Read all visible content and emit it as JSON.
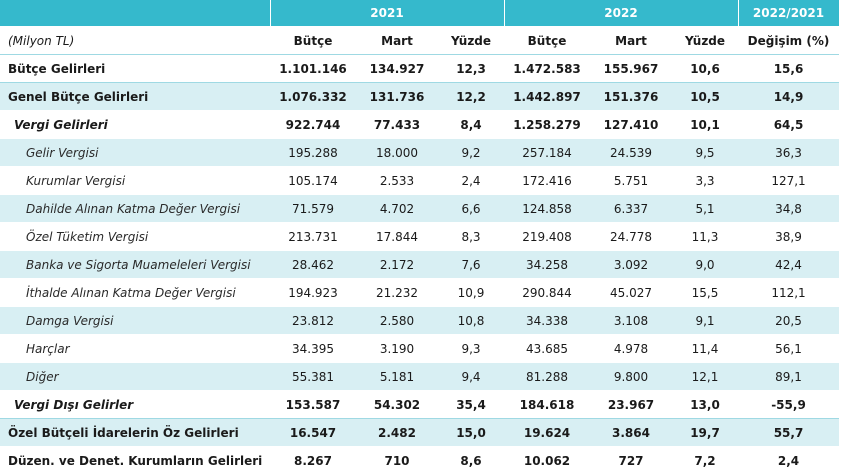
{
  "header": {
    "year1": "2021",
    "year2": "2022",
    "change": "2022/2021",
    "unit": "(Milyon TL)",
    "col_budget": "Bütçe",
    "col_march": "Mart",
    "col_pct": "Yüzde",
    "col_change": "Değişim (%)"
  },
  "rows": [
    {
      "label": "Bütçe Gelirleri",
      "b21": "1.101.146",
      "m21": "134.927",
      "p21": "12,3",
      "b22": "1.472.583",
      "m22": "155.967",
      "p22": "10,6",
      "chg": "15,6"
    },
    {
      "label": "Genel Bütçe Gelirleri",
      "b21": "1.076.332",
      "m21": "131.736",
      "p21": "12,2",
      "b22": "1.442.897",
      "m22": "151.376",
      "p22": "10,5",
      "chg": "14,9"
    },
    {
      "label": "Vergi Gelirleri",
      "b21": "922.744",
      "m21": "77.433",
      "p21": "8,4",
      "b22": "1.258.279",
      "m22": "127.410",
      "p22": "10,1",
      "chg": "64,5"
    },
    {
      "label": "Gelir Vergisi",
      "b21": "195.288",
      "m21": "18.000",
      "p21": "9,2",
      "b22": "257.184",
      "m22": "24.539",
      "p22": "9,5",
      "chg": "36,3"
    },
    {
      "label": "Kurumlar Vergisi",
      "b21": "105.174",
      "m21": "2.533",
      "p21": "2,4",
      "b22": "172.416",
      "m22": "5.751",
      "p22": "3,3",
      "chg": "127,1"
    },
    {
      "label": "Dahilde Alınan Katma Değer Vergisi",
      "b21": "71.579",
      "m21": "4.702",
      "p21": "6,6",
      "b22": "124.858",
      "m22": "6.337",
      "p22": "5,1",
      "chg": "34,8"
    },
    {
      "label": "Özel Tüketim Vergisi",
      "b21": "213.731",
      "m21": "17.844",
      "p21": "8,3",
      "b22": "219.408",
      "m22": "24.778",
      "p22": "11,3",
      "chg": "38,9"
    },
    {
      "label": "Banka ve Sigorta Muameleleri Vergisi",
      "b21": "28.462",
      "m21": "2.172",
      "p21": "7,6",
      "b22": "34.258",
      "m22": "3.092",
      "p22": "9,0",
      "chg": "42,4"
    },
    {
      "label": "İthalde Alınan Katma Değer Vergisi",
      "b21": "194.923",
      "m21": "21.232",
      "p21": "10,9",
      "b22": "290.844",
      "m22": "45.027",
      "p22": "15,5",
      "chg": "112,1"
    },
    {
      "label": "Damga Vergisi",
      "b21": "23.812",
      "m21": "2.580",
      "p21": "10,8",
      "b22": "34.338",
      "m22": "3.108",
      "p22": "9,1",
      "chg": "20,5"
    },
    {
      "label": "Harçlar",
      "b21": "34.395",
      "m21": "3.190",
      "p21": "9,3",
      "b22": "43.685",
      "m22": "4.978",
      "p22": "11,4",
      "chg": "56,1"
    },
    {
      "label": "Diğer",
      "b21": "55.381",
      "m21": "5.181",
      "p21": "9,4",
      "b22": "81.288",
      "m22": "9.800",
      "p22": "12,1",
      "chg": "89,1"
    },
    {
      "label": "Vergi Dışı Gelirler",
      "b21": "153.587",
      "m21": "54.302",
      "p21": "35,4",
      "b22": "184.618",
      "m22": "23.967",
      "p22": "13,0",
      "chg": "-55,9"
    },
    {
      "label": "Özel Bütçeli İdarelerin Öz Gelirleri",
      "b21": "16.547",
      "m21": "2.482",
      "p21": "15,0",
      "b22": "19.624",
      "m22": "3.864",
      "p22": "19,7",
      "chg": "55,7"
    },
    {
      "label": "Düzen. ve Denet. Kurumların Gelirleri",
      "b21": "8.267",
      "m21": "710",
      "p21": "8,6",
      "b22": "10.062",
      "m22": "727",
      "p22": "7,2",
      "chg": "2,4"
    }
  ]
}
